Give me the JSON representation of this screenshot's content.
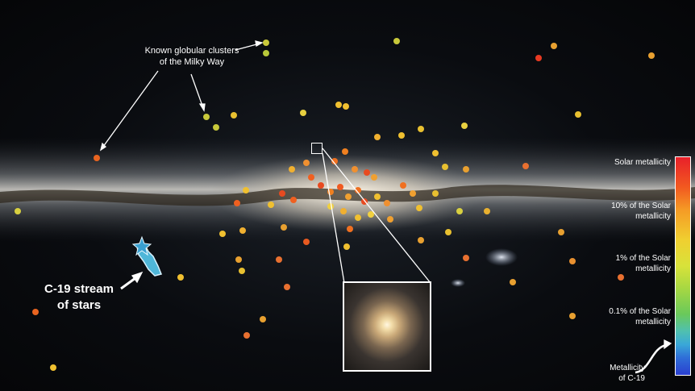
{
  "annotations": {
    "clusters_line1": "Known globular clusters",
    "clusters_line2": "of the Milky Way",
    "stream_line1": "C-19 stream",
    "stream_line2": "of stars"
  },
  "colorbar": {
    "solar": "Solar metallicity",
    "ten_line1": "10% of the Solar",
    "ten_line2": "metallicity",
    "one_line1": "1% of the Solar",
    "one_line2": "metallicity",
    "tenth_line1": "0.1% of the Solar",
    "tenth_line2": "metallicity",
    "c19_line1": "Metallicity",
    "c19_line2": "of C-19"
  }
}
